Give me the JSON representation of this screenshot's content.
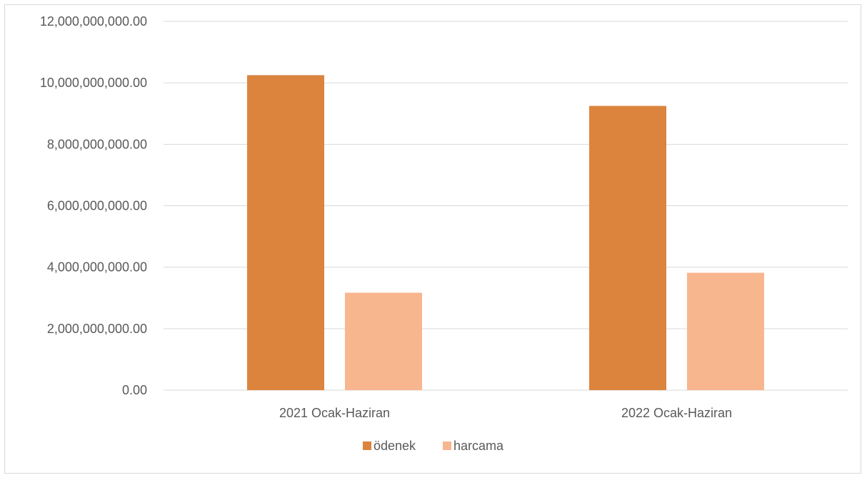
{
  "chart_data": {
    "type": "bar",
    "categories": [
      "2021 Ocak-Haziran",
      "2022 Ocak-Haziran"
    ],
    "series": [
      {
        "name": "ödenek",
        "values": [
          10250000000,
          9250000000
        ],
        "color": "#dc843e"
      },
      {
        "name": "harcama",
        "values": [
          3170000000,
          3820000000
        ],
        "color": "#f8b68f"
      }
    ],
    "ylim": [
      0,
      12000000000
    ],
    "yticks": [
      0,
      2000000000,
      4000000000,
      6000000000,
      8000000000,
      10000000000,
      12000000000
    ],
    "ytick_labels": [
      "0.00",
      "2,000,000,000.00",
      "4,000,000,000.00",
      "6,000,000,000.00",
      "8,000,000,000.00",
      "10,000,000,000.00",
      "12,000,000,000.00"
    ],
    "grid": true,
    "legend": "bottom"
  }
}
